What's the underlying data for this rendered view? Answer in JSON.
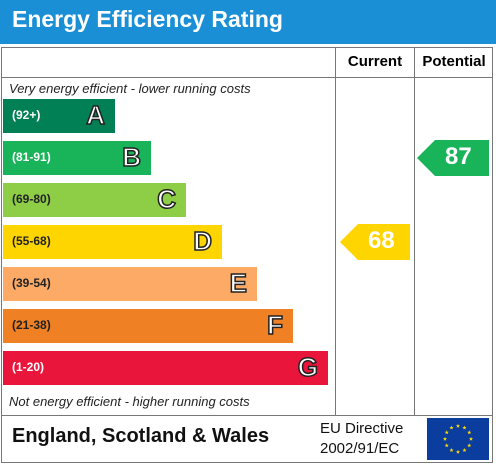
{
  "header": {
    "title": "Energy Efficiency Rating"
  },
  "columns": {
    "current": "Current",
    "potential": "Potential"
  },
  "notes": {
    "top": "Very energy efficient - lower running costs",
    "bottom": "Not energy efficient - higher running costs"
  },
  "footer": {
    "country": "England, Scotland & Wales",
    "directive_line1": "EU Directive",
    "directive_line2": "2002/91/EC",
    "flag_icon": "eu-flag-icon"
  },
  "chart_data": {
    "type": "bar",
    "title": "Energy Efficiency Rating",
    "categories": [
      "A",
      "B",
      "C",
      "D",
      "E",
      "F",
      "G"
    ],
    "bands": [
      {
        "letter": "A",
        "range": "(92+)",
        "color": "#008054"
      },
      {
        "letter": "B",
        "range": "(81-91)",
        "color": "#19b459"
      },
      {
        "letter": "C",
        "range": "(69-80)",
        "color": "#8dce46"
      },
      {
        "letter": "D",
        "range": "(55-68)",
        "color": "#ffd500"
      },
      {
        "letter": "E",
        "range": "(39-54)",
        "color": "#fcaa65"
      },
      {
        "letter": "F",
        "range": "(21-38)",
        "color": "#ef8023"
      },
      {
        "letter": "G",
        "range": "(1-20)",
        "color": "#e9153b"
      }
    ],
    "current": {
      "value": 68,
      "band": "D",
      "color": "#ffd500"
    },
    "potential": {
      "value": 87,
      "band": "B",
      "color": "#19b459"
    }
  }
}
